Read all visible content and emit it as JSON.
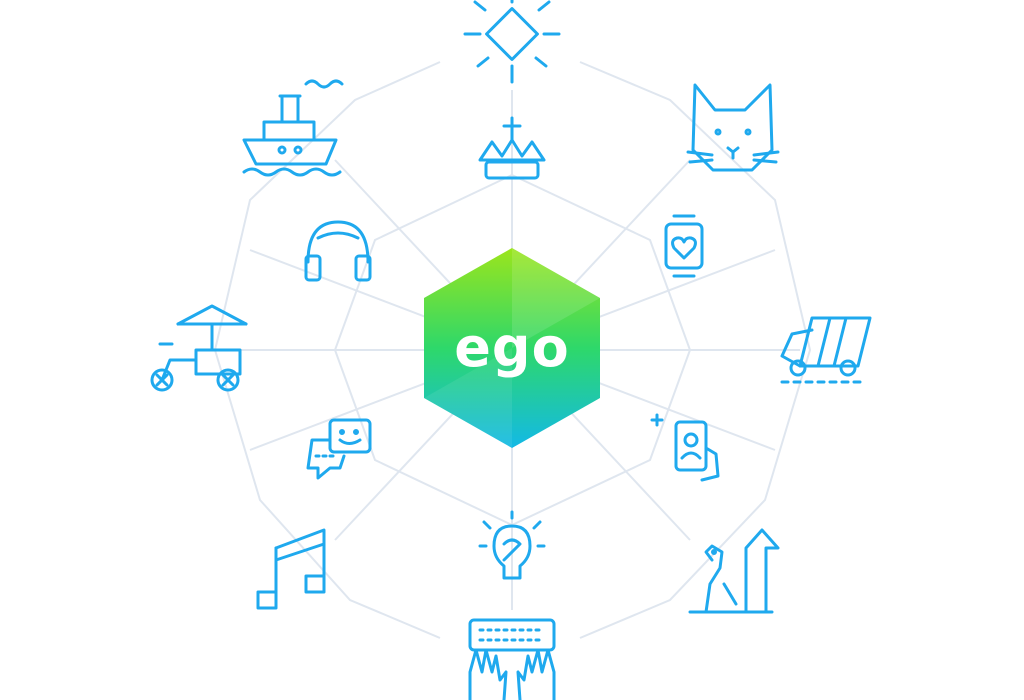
{
  "logo": {
    "text": "ego",
    "colors": {
      "top": "#9be51c",
      "mid": "#2ed86a",
      "bottom": "#13b9e6"
    }
  },
  "icon_color": "#1fa9ee",
  "network_color": "#dfe6ef",
  "icons": [
    "sun-diamond-icon",
    "crown-icon",
    "cat-icon",
    "ship-icon",
    "headphones-icon",
    "smartwatch-heart-icon",
    "delivery-van-icon",
    "ice-cream-cart-icon",
    "chat-bubbles-icon",
    "phone-contact-icon",
    "music-note-icon",
    "lightbulb-brain-icon",
    "squirrel-icon",
    "keyboard-hands-icon"
  ]
}
